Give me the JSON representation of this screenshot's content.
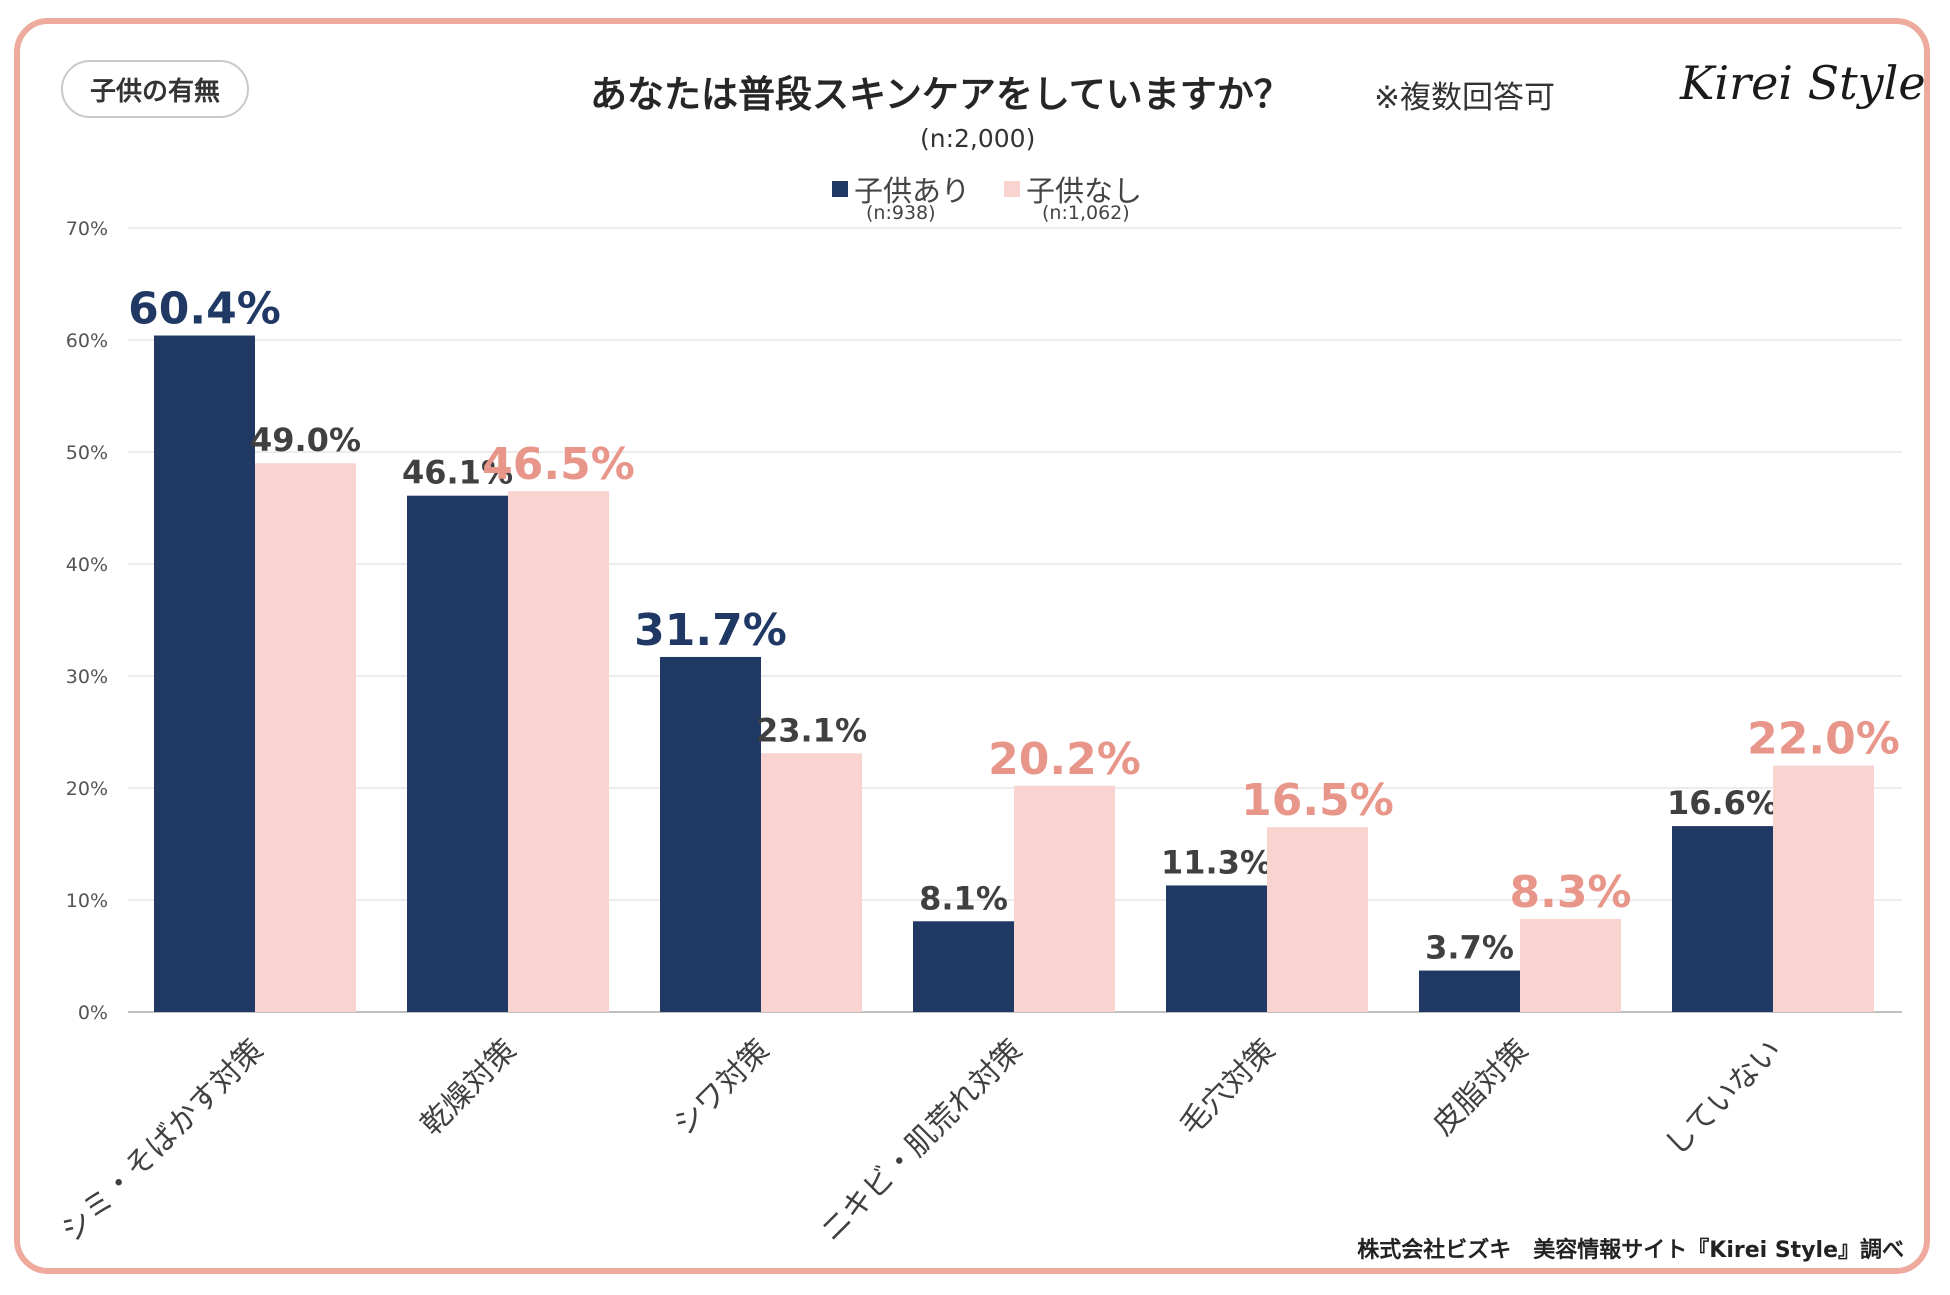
{
  "tag_label": "子供の有無",
  "title": "あなたは普段スキンケアをしていますか？",
  "note": "※複数回答可",
  "brand": "Kirei Style",
  "sample": "(n:2,000)",
  "footer": "株式会社ビズキ　美容情報サイト『Kirei Style』調べ",
  "legend": [
    {
      "name": "子供あり",
      "sub": "(n:938)"
    },
    {
      "name": "子供なし",
      "sub": "(n:1,062)"
    }
  ],
  "colors": {
    "series_a": "#203864",
    "series_b": "#f9d3cf",
    "highlight_b_label": "#e8968a",
    "grid": "#e6e6e6",
    "axis": "#bfbfbf"
  },
  "chart_data": {
    "type": "bar",
    "ylim": [
      0,
      70
    ],
    "yticks": [
      "0%",
      "10%",
      "20%",
      "30%",
      "40%",
      "50%",
      "60%",
      "70%"
    ],
    "grid": true,
    "legend_position": "top",
    "categories": [
      "シミ・そばかす対策",
      "乾燥対策",
      "シワ対策",
      "ニキビ・肌荒れ対策",
      "毛穴対策",
      "皮脂対策",
      "していない"
    ],
    "series": [
      {
        "name": "子供あり",
        "values": [
          60.4,
          46.1,
          31.7,
          8.1,
          11.3,
          3.7,
          16.6
        ],
        "labels": [
          "60.4%",
          "46.1%",
          "31.7%",
          "8.1%",
          "11.3%",
          "3.7%",
          "16.6%"
        ],
        "highlight": [
          true,
          false,
          true,
          false,
          false,
          false,
          false
        ]
      },
      {
        "name": "子供なし",
        "values": [
          49.0,
          46.5,
          23.1,
          20.2,
          16.5,
          8.3,
          22.0
        ],
        "labels": [
          "49.0%",
          "46.5%",
          "23.1%",
          "20.2%",
          "16.5%",
          "8.3%",
          "22.0%"
        ],
        "highlight": [
          false,
          true,
          false,
          true,
          true,
          true,
          true
        ]
      }
    ]
  }
}
